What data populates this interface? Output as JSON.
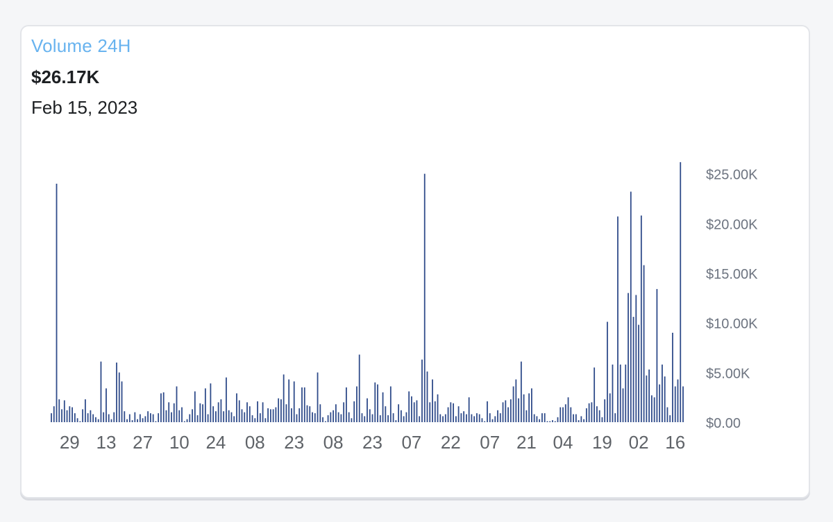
{
  "widget": {
    "title": "Volume 24H",
    "value": "$26.17K",
    "date": "Feb 15, 2023"
  },
  "colors": {
    "bar": "#2f4b8a",
    "title": "#68b3ef",
    "axis_text": "#5f6368",
    "y_axis_text": "#6d7480"
  },
  "chart_data": {
    "type": "bar",
    "title": "",
    "xlabel": "",
    "ylabel": "",
    "ylim": [
      0,
      27000
    ],
    "y_ticks": [
      0,
      5000,
      10000,
      15000,
      20000,
      25000
    ],
    "y_tick_labels": [
      "$0.00",
      "$5.00K",
      "$10.00K",
      "$15.00K",
      "$20.00K",
      "$25.00K"
    ],
    "x_tick_labels": [
      "29",
      "13",
      "27",
      "10",
      "24",
      "08",
      "23",
      "08",
      "23",
      "07",
      "22",
      "07",
      "21",
      "04",
      "19",
      "02",
      "16"
    ],
    "x_tick_positions": [
      7,
      21,
      35,
      49,
      63,
      78,
      93,
      108,
      123,
      138,
      153,
      168,
      182,
      196,
      211,
      225,
      239
    ],
    "grid": false,
    "legend": "none",
    "values": [
      900,
      1600,
      24000,
      2300,
      1300,
      2200,
      1200,
      1600,
      1500,
      900,
      400,
      100,
      1300,
      2300,
      900,
      1200,
      800,
      500,
      300,
      6100,
      1000,
      3400,
      800,
      300,
      1000,
      6000,
      5000,
      4100,
      1100,
      300,
      800,
      200,
      1000,
      300,
      800,
      400,
      600,
      1100,
      900,
      800,
      100,
      900,
      2900,
      3000,
      1200,
      2000,
      1000,
      1900,
      3600,
      1200,
      1500,
      100,
      300,
      800,
      1300,
      3100,
      700,
      1900,
      1800,
      3400,
      800,
      3900,
      1600,
      1100,
      2000,
      2300,
      1100,
      4500,
      1200,
      1000,
      600,
      2900,
      2200,
      1300,
      1000,
      2000,
      1600,
      700,
      400,
      2100,
      900,
      2000,
      400,
      1400,
      1300,
      1300,
      1500,
      2400,
      2300,
      4800,
      1800,
      4300,
      1400,
      4100,
      800,
      1400,
      3500,
      3500,
      1700,
      1600,
      1000,
      900,
      5000,
      1800,
      500,
      100,
      700,
      1000,
      1200,
      1800,
      1000,
      800,
      2000,
      3500,
      1000,
      400,
      2100,
      3600,
      6800,
      900,
      600,
      2400,
      1300,
      800,
      4000,
      3800,
      700,
      3000,
      1600,
      700,
      3600,
      900,
      200,
      1800,
      1200,
      600,
      1000,
      3100,
      2600,
      2000,
      2200,
      600,
      6300,
      25000,
      5100,
      2000,
      4300,
      2100,
      2800,
      800,
      600,
      800,
      1500,
      2000,
      1900,
      600,
      1600,
      900,
      1100,
      800,
      2500,
      800,
      600,
      900,
      800,
      400,
      100,
      2100,
      900,
      300,
      600,
      1200,
      900,
      2000,
      2200,
      1500,
      2300,
      3600,
      4300,
      2400,
      6100,
      2800,
      1200,
      2900,
      3400,
      800,
      600,
      300,
      900,
      900,
      100,
      100,
      200,
      100,
      500,
      1500,
      1500,
      1800,
      2500,
      1500,
      800,
      800,
      200,
      600,
      300,
      1400,
      1900,
      2000,
      5500,
      1600,
      1200,
      500,
      2300,
      10100,
      2900,
      5800,
      900,
      20700,
      5800,
      3400,
      5800,
      13000,
      23200,
      10600,
      12800,
      9800,
      20800,
      15800,
      4700,
      5300,
      2700,
      2500,
      13400,
      3800,
      5800,
      4600,
      1500,
      700,
      9000,
      3600,
      4300,
      26170,
      3600
    ]
  }
}
